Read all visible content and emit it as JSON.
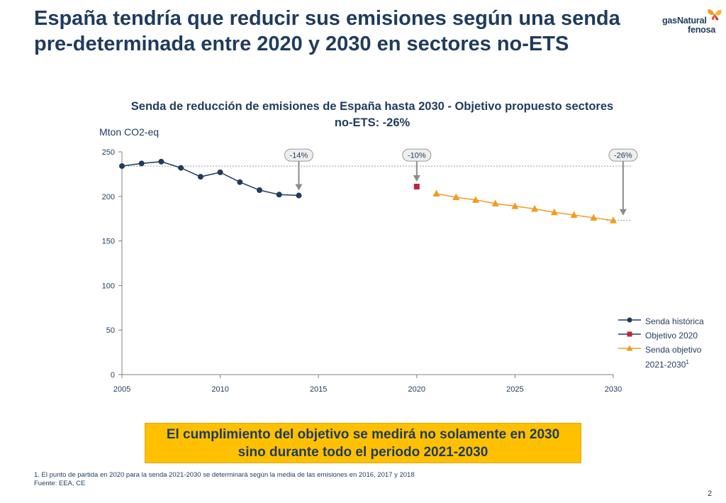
{
  "slide": {
    "title": "España tendría que reducir sus emisiones según una senda pre-determinada entre 2020 y 2030 en sectores no-ETS",
    "page_number": "2"
  },
  "logo": {
    "line1": "gasNatural",
    "line2": "fenosa"
  },
  "callout": {
    "text": "El cumplimiento del objetivo se medirá no solamente en 2030 sino durante todo el periodo 2021-2030"
  },
  "footnote": {
    "note": "1. El punto de partida en 2020 para la senda 2021-2030 se determinará según la media de las emisiones en 2016, 2017 y 2018",
    "source": "Fuente: EEA, CE"
  },
  "legend": {
    "historic": "Senda histórica",
    "target_2020": "Objetivo 2020",
    "target_path_line1": "Senda objetivo",
    "target_path_line2": "2021-2030",
    "target_path_sup": "1"
  },
  "colors": {
    "title": "#1f3b5e",
    "historic": "#1f3b5e",
    "target_2020": "#c0253a",
    "target_path": "#f39c1f",
    "callout_bg": "#ffc000",
    "annotation": "#8c8c8c"
  },
  "chart_data": {
    "type": "line",
    "title": "Senda de reducción de emisiones de España hasta 2030 - Objetivo propuesto sectores no-ETS: -26%",
    "ylabel": "Mton CO2-eq",
    "xlabel": "",
    "xlim": [
      2005,
      2030
    ],
    "ylim": [
      0,
      250
    ],
    "x_ticks": [
      2005,
      2010,
      2015,
      2020,
      2025,
      2030
    ],
    "y_ticks": [
      0,
      50,
      100,
      150,
      200,
      250
    ],
    "reference_line_value": 234,
    "series": [
      {
        "name": "Senda histórica",
        "marker": "circle",
        "x": [
          2005,
          2006,
          2007,
          2008,
          2009,
          2010,
          2011,
          2012,
          2013,
          2014
        ],
        "values": [
          234,
          237,
          239,
          232,
          222,
          227,
          216,
          207,
          202,
          201
        ]
      },
      {
        "name": "Objetivo 2020",
        "marker": "square",
        "x": [
          2020
        ],
        "values": [
          211
        ]
      },
      {
        "name": "Senda objetivo 2021-2030",
        "marker": "triangle",
        "x": [
          2021,
          2022,
          2023,
          2024,
          2025,
          2026,
          2027,
          2028,
          2029,
          2030
        ],
        "values": [
          203,
          199,
          196,
          192,
          189,
          186,
          182,
          179,
          176,
          173
        ]
      }
    ],
    "annotations": [
      {
        "label": "-14%",
        "x": 2014,
        "from": 234,
        "to": 201
      },
      {
        "label": "-10%",
        "x": 2020,
        "from": 234,
        "to": 211
      },
      {
        "label": "-26%",
        "x": 2030.5,
        "from": 234,
        "to": 173
      }
    ]
  }
}
